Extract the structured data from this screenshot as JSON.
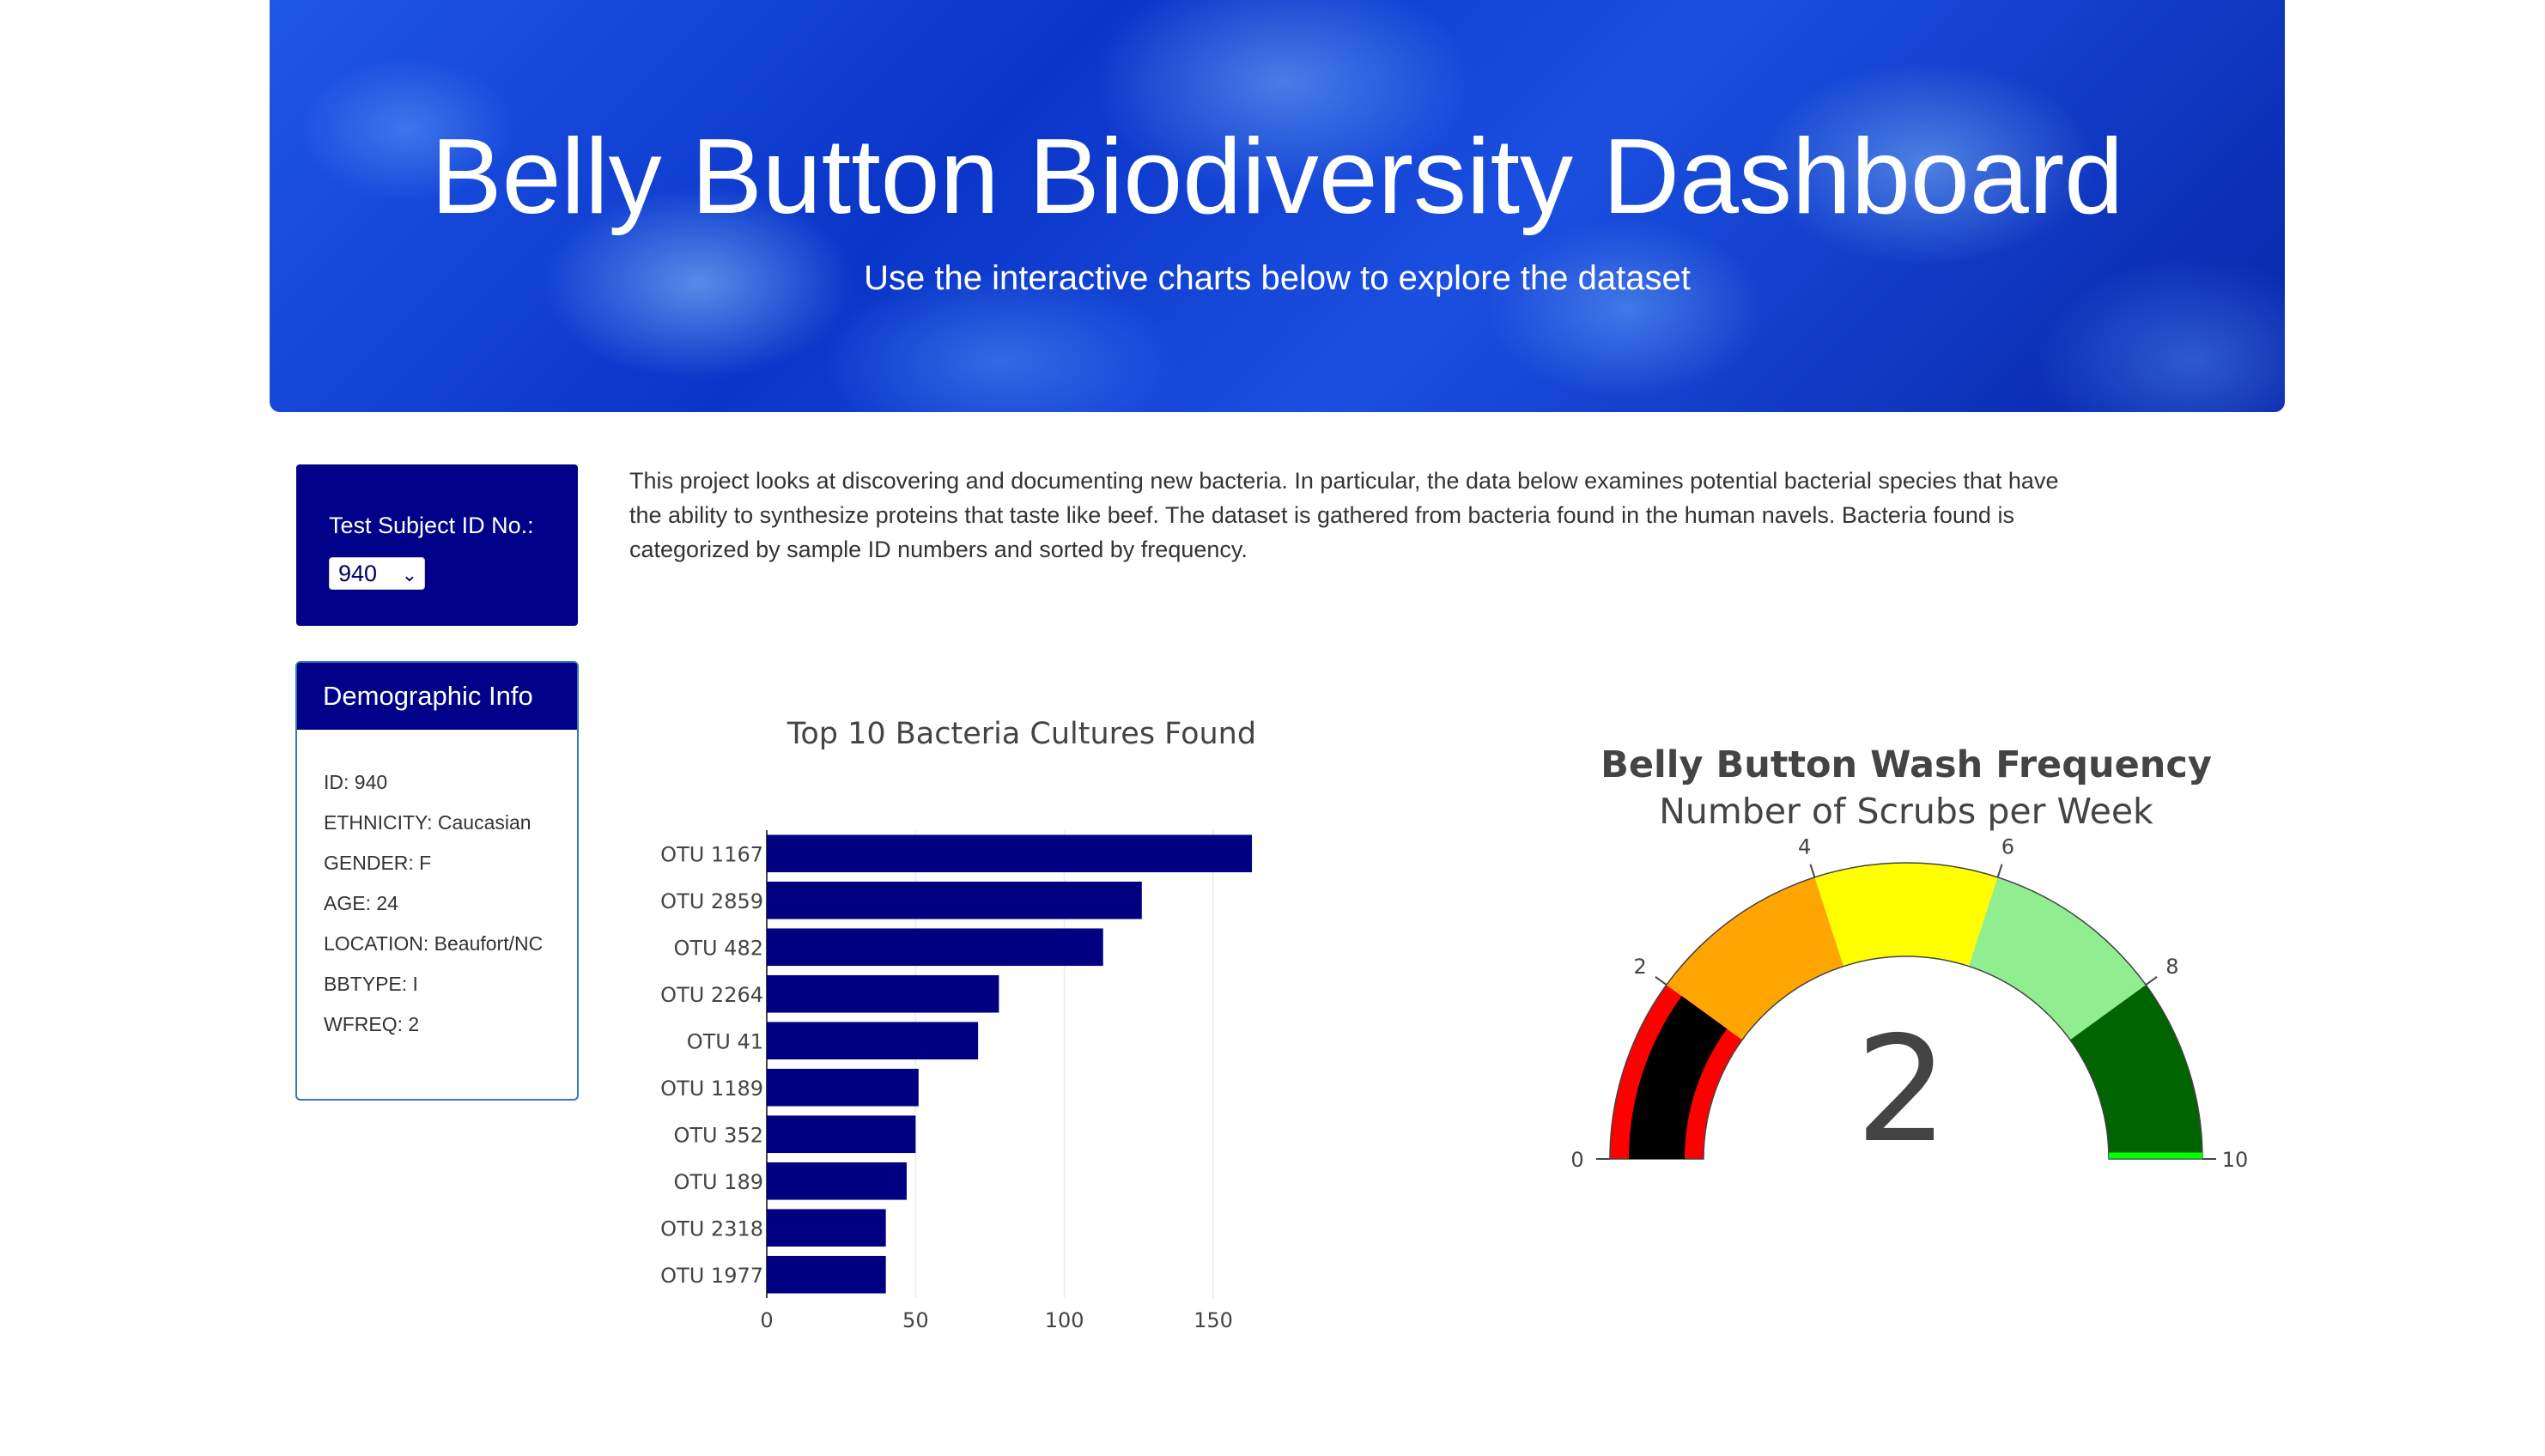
{
  "header": {
    "title": "Belly Button Biodiversity Dashboard",
    "subtitle": "Use the interactive charts below to explore the dataset"
  },
  "selector": {
    "label": "Test Subject ID No.:",
    "selected": "940"
  },
  "demographics": {
    "heading": "Demographic Info",
    "items": [
      "ID: 940",
      "ETHNICITY: Caucasian",
      "GENDER: F",
      "AGE: 24",
      "LOCATION: Beaufort/NC",
      "BBTYPE: I",
      "WFREQ: 2"
    ]
  },
  "intro": {
    "text": "This project looks at discovering and documenting new bacteria. In particular, the data below examines potential bacterial species that have the ability to synthesize proteins that taste like beef. The dataset is gathered from bacteria found in the human navels. Bacteria found is categorized by sample ID numbers and sorted by frequency."
  },
  "chart_data": [
    {
      "type": "bar",
      "orientation": "horizontal",
      "title": "Top 10 Bacteria Cultures Found",
      "categories": [
        "OTU 1167",
        "OTU 2859",
        "OTU 482",
        "OTU 2264",
        "OTU 41",
        "OTU 1189",
        "OTU 352",
        "OTU 189",
        "OTU 2318",
        "OTU 1977"
      ],
      "values": [
        163,
        126,
        113,
        78,
        71,
        51,
        50,
        47,
        40,
        40
      ],
      "xlim": [
        0,
        165
      ],
      "xticks": [
        "0",
        "50",
        "100",
        "150"
      ],
      "grid": "vertical",
      "color": "#000080"
    },
    {
      "type": "gauge",
      "title": "Belly Button Wash Frequency",
      "subtitle": "Number of Scrubs per Week",
      "value": 2,
      "value_label": "2",
      "range": [
        0,
        10
      ],
      "ticks": [
        "0",
        "2",
        "4",
        "6",
        "8",
        "10"
      ],
      "steps": [
        {
          "range": [
            0,
            2
          ],
          "color": "#ff0000"
        },
        {
          "range": [
            2,
            4
          ],
          "color": "#ffa500"
        },
        {
          "range": [
            4,
            6
          ],
          "color": "#ffff00"
        },
        {
          "range": [
            6,
            8
          ],
          "color": "#90ee90"
        },
        {
          "range": [
            8,
            10
          ],
          "color": "#006400"
        }
      ],
      "bar_color": "#000000",
      "threshold": {
        "value": 10,
        "color": "#00ff00"
      }
    }
  ]
}
